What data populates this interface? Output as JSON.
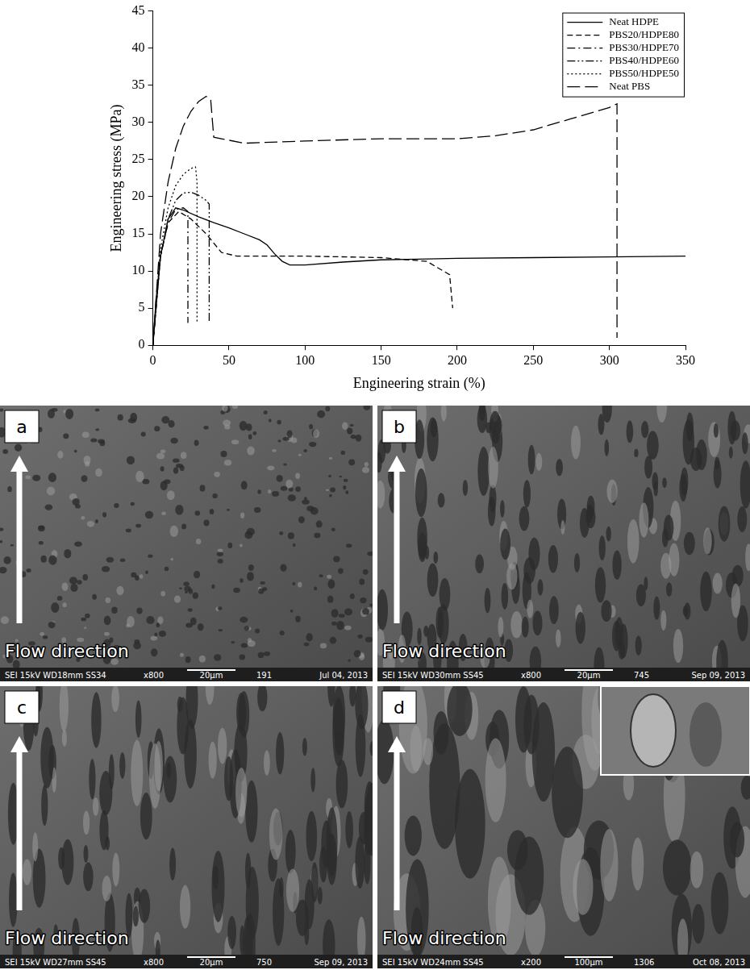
{
  "chart_data": {
    "type": "line",
    "x_label": "Engineering strain (%)",
    "y_label": "Engineering stress (MPa)",
    "xlim": [
      0,
      350
    ],
    "xticks": [
      0,
      50,
      100,
      150,
      200,
      250,
      300,
      350
    ],
    "ylim": [
      0,
      45
    ],
    "yticks": [
      0,
      5,
      10,
      15,
      20,
      25,
      30,
      35,
      40,
      45
    ],
    "grid": false,
    "legend": "upper right",
    "series": [
      {
        "name": "Neat HDPE",
        "color": "#000000",
        "line_style": "solid",
        "x": [
          0,
          2,
          5,
          10,
          15,
          20,
          30,
          40,
          50,
          60,
          70,
          75,
          80,
          85,
          90,
          100,
          125,
          150,
          175,
          200,
          250,
          300,
          350
        ],
        "values": [
          0,
          6,
          12,
          17,
          18.5,
          18.2,
          17.3,
          16.5,
          15.8,
          15,
          14.2,
          13.5,
          12.3,
          11.3,
          10.8,
          10.8,
          11.2,
          11.5,
          11.6,
          11.7,
          11.8,
          11.9,
          12
        ]
      },
      {
        "name": "PBS20/HDPE80",
        "color": "#000000",
        "line_style": "dashed",
        "x": [
          0,
          5,
          10,
          17,
          25,
          35,
          45,
          55,
          100,
          150,
          180,
          195,
          197
        ],
        "values": [
          0,
          12,
          16.5,
          18,
          17,
          15,
          12.5,
          12,
          12,
          11.8,
          11.3,
          9.5,
          5
        ]
      },
      {
        "name": "PBS30/HDPE70",
        "color": "#000000",
        "line_style": "dash-dot",
        "x": [
          0,
          5,
          10,
          15,
          20,
          23,
          23
        ],
        "values": [
          0,
          12,
          16.5,
          18.3,
          18.5,
          18,
          3
        ]
      },
      {
        "name": "PBS40/HDPE60",
        "color": "#000000",
        "line_style": "dash-dot-dot",
        "x": [
          0,
          5,
          10,
          15,
          20,
          25,
          30,
          35,
          37,
          37
        ],
        "values": [
          0,
          12,
          17,
          19.5,
          20.5,
          20.6,
          20.2,
          19.5,
          19,
          3
        ]
      },
      {
        "name": "PBS50/HDPE50",
        "color": "#000000",
        "line_style": "dotted",
        "x": [
          0,
          5,
          10,
          15,
          20,
          25,
          28,
          29,
          29
        ],
        "values": [
          0,
          13,
          18.5,
          21.5,
          23,
          23.8,
          24,
          22,
          3
        ]
      },
      {
        "name": "Neat PBS",
        "color": "#000000",
        "line_style": "long-dashed",
        "x": [
          0,
          5,
          10,
          15,
          20,
          25,
          30,
          35,
          38,
          40,
          45,
          60,
          100,
          150,
          200,
          225,
          250,
          275,
          300,
          305,
          305
        ],
        "values": [
          0,
          15,
          22,
          26.5,
          29.5,
          31.5,
          32.8,
          33.5,
          33,
          28,
          27.8,
          27.2,
          27.5,
          27.8,
          27.8,
          28.2,
          29,
          30.5,
          32,
          32.5,
          1
        ]
      }
    ]
  },
  "micrographs": [
    {
      "label": "a",
      "annotation": "Flow direction",
      "detector": "SEI",
      "voltage": "15kV",
      "working_distance": "WD18mm",
      "spot_size": "SS34",
      "magnification": "x800",
      "scale_bar": "20μm",
      "image_number": "191",
      "date": "Jul 04, 2013"
    },
    {
      "label": "b",
      "annotation": "Flow direction",
      "detector": "SEI",
      "voltage": "15kV",
      "working_distance": "WD30mm",
      "spot_size": "SS45",
      "magnification": "x800",
      "scale_bar": "20μm",
      "image_number": "745",
      "date": "Sep 09, 2013"
    },
    {
      "label": "c",
      "annotation": "Flow direction",
      "detector": "SEI",
      "voltage": "15kV",
      "working_distance": "WD27mm",
      "spot_size": "SS45",
      "magnification": "x800",
      "scale_bar": "20μm",
      "image_number": "750",
      "date": "Sep 09, 2013"
    },
    {
      "label": "d",
      "annotation": "Flow direction",
      "detector": "SEI",
      "voltage": "15kV",
      "working_distance": "WD24mm",
      "spot_size": "SS45",
      "magnification": "x200",
      "scale_bar": "100μm",
      "image_number": "1306",
      "date": "Oct 08, 2013"
    }
  ]
}
